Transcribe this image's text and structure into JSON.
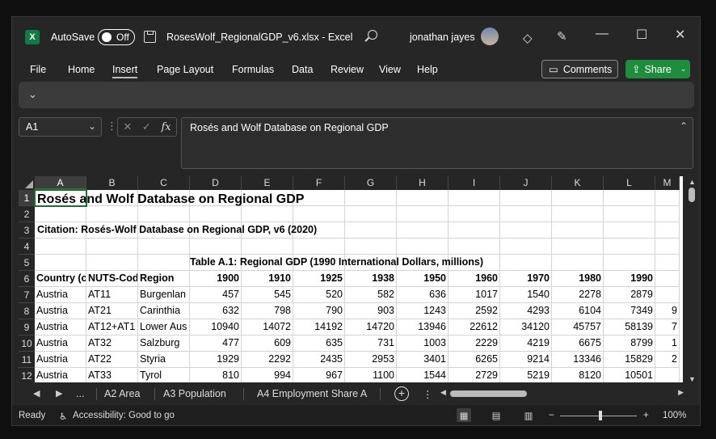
{
  "titlebar": {
    "app_icon": "X",
    "autosave_label": "AutoSave",
    "autosave_state": "Off",
    "doc_title": "RosesWolf_RegionalGDP_v6.xlsx  -  Excel",
    "user_name": "jonathan jayes",
    "minimize": "—",
    "maximize": "☐",
    "close": "✕"
  },
  "menu": {
    "items": [
      "File",
      "Home",
      "Insert",
      "Page Layout",
      "Formulas",
      "Data",
      "Review",
      "View",
      "Help"
    ],
    "active": "Insert",
    "comments_label": "Comments",
    "share_label": "Share"
  },
  "formula": {
    "name_box": "A1",
    "value": "Rosés and Wolf Database on Regional GDP"
  },
  "columns": [
    "A",
    "B",
    "C",
    "D",
    "E",
    "F",
    "G",
    "H",
    "I",
    "J",
    "K",
    "L",
    "M"
  ],
  "rows": [
    "1",
    "2",
    "3",
    "4",
    "5",
    "6",
    "7",
    "8",
    "9",
    "10",
    "11",
    "12"
  ],
  "sheet": {
    "title": "Rosés and Wolf Database on Regional GDP",
    "citation": "Citation: Rosés-Wolf Database on Regional GDP, v6 (2020)",
    "table_title": "Table A.1: Regional GDP (1990 International Dollars, millions)",
    "headers": [
      "Country (c",
      "NUTS-Cod",
      "Region",
      "1900",
      "1910",
      "1925",
      "1938",
      "1950",
      "1960",
      "1970",
      "1980",
      "1990",
      ""
    ],
    "data": [
      [
        "Austria",
        "AT11",
        "Burgenlan",
        "457",
        "545",
        "520",
        "582",
        "636",
        "1017",
        "1540",
        "2278",
        "2879",
        ""
      ],
      [
        "Austria",
        "AT21",
        "Carinthia",
        "632",
        "798",
        "790",
        "903",
        "1243",
        "2592",
        "4293",
        "6104",
        "7349",
        "9"
      ],
      [
        "Austria",
        "AT12+AT1",
        "Lower Aus",
        "10940",
        "14072",
        "14192",
        "14720",
        "13946",
        "22612",
        "34120",
        "45757",
        "58139",
        "7"
      ],
      [
        "Austria",
        "AT32",
        "Salzburg",
        "477",
        "609",
        "635",
        "731",
        "1003",
        "2229",
        "4219",
        "6675",
        "8799",
        "1"
      ],
      [
        "Austria",
        "AT22",
        "Styria",
        "1929",
        "2292",
        "2435",
        "2953",
        "3401",
        "6265",
        "9214",
        "13346",
        "15829",
        "2"
      ],
      [
        "Austria",
        "AT33",
        "Tyrol",
        "810",
        "994",
        "967",
        "1100",
        "1544",
        "2729",
        "5219",
        "8120",
        "10501",
        ""
      ]
    ]
  },
  "sheet_tabs": {
    "ellipsis": "...",
    "tabs": [
      "A2 Area",
      "A3 Population",
      "A4 Employment Share A"
    ],
    "add_label": "+",
    "more": "⋮"
  },
  "status": {
    "ready": "Ready",
    "accessibility": "Accessibility: Good to go",
    "zoom_minus": "−",
    "zoom_plus": "+",
    "zoom": "100%"
  }
}
